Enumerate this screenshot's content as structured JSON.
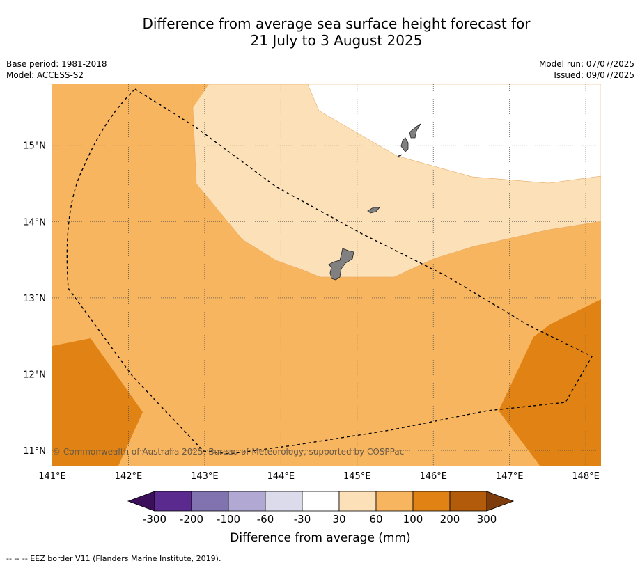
{
  "title": {
    "line1": "Difference from average sea surface height forecast for",
    "line2": "21 July to 3 August 2025"
  },
  "meta": {
    "base_period": "Base period: 1981-2018",
    "model": "Model: ACCESS-S2",
    "model_run": "Model run: 07/07/2025",
    "issued": "Issued: 09/07/2025"
  },
  "map": {
    "lon_range": [
      141,
      148.2
    ],
    "lat_range": [
      10.8,
      15.8
    ],
    "lon_ticks": [
      "141°E",
      "142°E",
      "143°E",
      "144°E",
      "145°E",
      "146°E",
      "147°E",
      "148°E"
    ],
    "lat_ticks": [
      "15°N",
      "14°N",
      "13°N",
      "12°N",
      "11°N"
    ],
    "copyright": "© Commonwealth of Australia 2025, Bureau of Meteorology, supported by COSPPac",
    "grid": true
  },
  "colorbar": {
    "label": "Difference from average (mm)",
    "tick_labels": [
      "-300",
      "-200",
      "-100",
      "-60",
      "-30",
      "30",
      "60",
      "100",
      "200",
      "300"
    ],
    "colors": [
      "#3b0f5a",
      "#5a2a8f",
      "#8073b0",
      "#b1a8d3",
      "#dcdbec",
      "#ffffff",
      "#fce0b7",
      "#f8b560",
      "#e08314",
      "#b25b0a",
      "#7e3b0c"
    ]
  },
  "footnote": "--  --  -- EEZ border V11 (Flanders Marine Institute, 2019)."
}
